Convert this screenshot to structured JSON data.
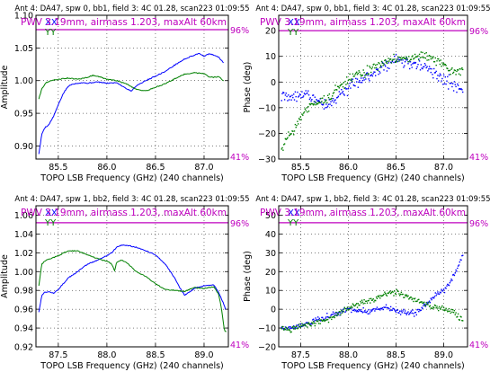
{
  "chart_data": [
    {
      "type": "line",
      "title": "Ant 4: DA47,  spw 0, bb1,  field 3: 4C 01.28,  scan223  01:09:55",
      "xlabel": "TOPO LSB Frequency (GHz) (240 channels)",
      "ylabel": "Amplitude",
      "xlim": [
        85.27,
        87.25
      ],
      "ylim": [
        0.88,
        1.1
      ],
      "xticks": [
        "85.5",
        "86.0",
        "86.5",
        "87.0"
      ],
      "yticks": [
        "0.90",
        "0.95",
        "1.00",
        "1.05",
        "1.10"
      ],
      "grid": true,
      "legend": [
        "XX",
        "YY"
      ],
      "annotation": "PWV 3.19mm, airmass 1.203, maxAlt 60km",
      "atm_labels": [
        "96%",
        "41%"
      ],
      "atm_level": 1.078,
      "series": [
        {
          "name": "XX",
          "color": "#0000ff",
          "style": "line",
          "x": [
            85.3,
            85.33,
            85.36,
            85.4,
            85.45,
            85.5,
            85.55,
            85.6,
            85.65,
            85.7,
            85.75,
            85.8,
            85.9,
            86.0,
            86.1,
            86.2,
            86.25,
            86.3,
            86.4,
            86.5,
            86.6,
            86.7,
            86.8,
            86.9,
            86.95,
            87.0,
            87.05,
            87.1,
            87.15,
            87.2
          ],
          "y": [
            0.888,
            0.918,
            0.928,
            0.932,
            0.945,
            0.963,
            0.98,
            0.991,
            0.995,
            0.996,
            0.997,
            0.996,
            0.998,
            0.996,
            0.997,
            0.988,
            0.984,
            0.992,
            1.0,
            1.007,
            1.014,
            1.024,
            1.033,
            1.039,
            1.042,
            1.037,
            1.041,
            1.039,
            1.036,
            1.027
          ]
        },
        {
          "name": "YY",
          "color": "#008000",
          "style": "line",
          "x": [
            85.3,
            85.33,
            85.37,
            85.4,
            85.5,
            85.6,
            85.7,
            85.8,
            85.85,
            85.9,
            86.0,
            86.1,
            86.2,
            86.3,
            86.4,
            86.5,
            86.6,
            86.7,
            86.8,
            86.9,
            87.0,
            87.05,
            87.1,
            87.15,
            87.2
          ],
          "y": [
            0.972,
            0.988,
            0.996,
            0.999,
            1.002,
            1.004,
            1.002,
            1.005,
            1.008,
            1.007,
            1.002,
            1.0,
            0.995,
            0.987,
            0.984,
            0.99,
            0.995,
            1.003,
            1.01,
            1.012,
            1.011,
            1.006,
            1.005,
            1.006,
            1.0
          ]
        }
      ]
    },
    {
      "type": "scatter",
      "title": "Ant 4: DA47,  spw 0, bb1,  field 3: 4C 01.28,  scan223  01:09:55",
      "xlabel": "TOPO LSB Frequency (GHz) (240 channels)",
      "ylabel": "Phase (deg)",
      "xlim": [
        85.27,
        87.25
      ],
      "ylim": [
        -30,
        26
      ],
      "xticks": [
        "85.5",
        "86.0",
        "86.5",
        "87.0"
      ],
      "yticks": [
        "−30",
        "−20",
        "−10",
        "0",
        "10",
        "20"
      ],
      "grid": true,
      "legend": [
        "XX",
        "YY"
      ],
      "annotation": "PWV 3.19mm, airmass 1.203, maxAlt 60km",
      "atm_labels": [
        "96%",
        "41%"
      ],
      "atm_level": 20,
      "series": [
        {
          "name": "XX",
          "color": "#0000ff",
          "style": "points",
          "x": [
            85.3,
            85.4,
            85.5,
            85.6,
            85.7,
            85.8,
            85.9,
            86.0,
            86.1,
            86.2,
            86.3,
            86.4,
            86.5,
            86.6,
            86.7,
            86.8,
            86.9,
            87.0,
            87.1,
            87.2
          ],
          "y": [
            -5,
            -6,
            -4,
            -6,
            -8,
            -9,
            -5,
            -2,
            0,
            2,
            4,
            6,
            9,
            8,
            7,
            6,
            3,
            1,
            -1,
            -3
          ],
          "spread": 2.2
        },
        {
          "name": "YY",
          "color": "#008000",
          "style": "points",
          "x": [
            85.3,
            85.35,
            85.4,
            85.5,
            85.6,
            85.7,
            85.8,
            85.9,
            86.0,
            86.1,
            86.2,
            86.3,
            86.4,
            86.5,
            86.6,
            86.7,
            86.8,
            86.9,
            87.0,
            87.1,
            87.2
          ],
          "y": [
            -27,
            -22,
            -20,
            -14,
            -9,
            -8,
            -6,
            -2,
            1,
            3,
            4,
            6,
            8,
            9,
            10,
            10,
            10,
            9,
            7,
            4,
            4
          ],
          "spread": 1.8
        }
      ]
    },
    {
      "type": "line",
      "title": "Ant 4: DA47,  spw 1, bb2,  field 3: 4C 01.28,  scan223  01:09:55",
      "xlabel": "TOPO LSB Frequency (GHz) (240 channels)",
      "ylabel": "Amplitude",
      "xlim": [
        87.27,
        89.25
      ],
      "ylim": [
        0.92,
        1.07
      ],
      "xticks": [
        "87.5",
        "88.0",
        "88.5",
        "89.0"
      ],
      "yticks": [
        "0.92",
        "0.94",
        "0.96",
        "0.98",
        "1.00",
        "1.02",
        "1.04",
        "1.06"
      ],
      "grid": true,
      "legend": [
        "XX",
        "YY"
      ],
      "annotation": "PWV 3.19mm, airmass 1.203, maxAlt 60km",
      "atm_labels": [
        "96%",
        "41%"
      ],
      "atm_level": 1.052,
      "series": [
        {
          "name": "XX",
          "color": "#0000ff",
          "style": "line",
          "x": [
            87.3,
            87.33,
            87.36,
            87.4,
            87.45,
            87.5,
            87.55,
            87.6,
            87.7,
            87.8,
            87.9,
            88.0,
            88.05,
            88.1,
            88.15,
            88.2,
            88.3,
            88.4,
            88.5,
            88.6,
            88.7,
            88.75,
            88.8,
            88.85,
            88.9,
            89.0,
            89.1,
            89.15,
            89.2,
            89.22
          ],
          "y": [
            0.957,
            0.975,
            0.978,
            0.979,
            0.977,
            0.981,
            0.987,
            0.993,
            1.0,
            1.008,
            1.012,
            1.017,
            1.02,
            1.026,
            1.028,
            1.028,
            1.026,
            1.022,
            1.018,
            1.008,
            0.993,
            0.983,
            0.975,
            0.978,
            0.982,
            0.985,
            0.986,
            0.978,
            0.966,
            0.96
          ]
        },
        {
          "name": "YY",
          "color": "#008000",
          "style": "line",
          "x": [
            87.3,
            87.33,
            87.36,
            87.4,
            87.5,
            87.6,
            87.7,
            87.8,
            87.9,
            88.0,
            88.05,
            88.08,
            88.1,
            88.15,
            88.2,
            88.3,
            88.4,
            88.5,
            88.6,
            88.7,
            88.8,
            88.9,
            89.0,
            89.1,
            89.15,
            89.18,
            89.21,
            89.23
          ],
          "y": [
            0.985,
            1.008,
            1.011,
            1.013,
            1.017,
            1.022,
            1.022,
            1.018,
            1.014,
            1.011,
            1.008,
            1.001,
            1.01,
            1.012,
            1.01,
            1.0,
            0.995,
            0.987,
            0.981,
            0.98,
            0.979,
            0.983,
            0.982,
            0.984,
            0.976,
            0.96,
            0.937,
            0.936
          ]
        }
      ]
    },
    {
      "type": "scatter",
      "title": "Ant 4: DA47,  spw 1, bb2,  field 3: 4C 01.28,  scan223  01:09:55",
      "xlabel": "TOPO LSB Frequency (GHz) (240 channels)",
      "ylabel": "Phase (deg)",
      "xlim": [
        87.27,
        89.25
      ],
      "ylim": [
        -20,
        55
      ],
      "xticks": [
        "87.5",
        "88.0",
        "88.5",
        "89.0"
      ],
      "yticks": [
        "−20",
        "−10",
        "0",
        "10",
        "20",
        "30",
        "40",
        "50"
      ],
      "grid": true,
      "legend": [
        "XX",
        "YY"
      ],
      "annotation": "PWV 3.19mm, airmass 1.203, maxAlt 60km",
      "atm_labels": [
        "96%",
        "41%"
      ],
      "atm_level": 46,
      "series": [
        {
          "name": "XX",
          "color": "#0000ff",
          "style": "points",
          "x": [
            87.3,
            87.4,
            87.5,
            87.6,
            87.7,
            87.8,
            87.9,
            88.0,
            88.1,
            88.2,
            88.3,
            88.4,
            88.5,
            88.6,
            88.7,
            88.8,
            88.9,
            89.0,
            89.05,
            89.1,
            89.15,
            89.2
          ],
          "y": [
            -10,
            -10,
            -9,
            -7,
            -5,
            -4,
            -2,
            0,
            -1,
            -1,
            0,
            1,
            -1,
            -2,
            -2,
            2,
            7,
            10,
            13,
            17,
            22,
            29
          ],
          "spread": 1.5
        },
        {
          "name": "YY",
          "color": "#008000",
          "style": "points",
          "x": [
            87.3,
            87.4,
            87.5,
            87.6,
            87.7,
            87.8,
            87.9,
            88.0,
            88.1,
            88.2,
            88.3,
            88.4,
            88.5,
            88.6,
            88.7,
            88.8,
            88.9,
            89.0,
            89.1,
            89.15,
            89.2
          ],
          "y": [
            -10,
            -11,
            -9,
            -8,
            -7,
            -5,
            -2,
            1,
            3,
            4,
            6,
            8,
            9,
            7,
            5,
            3,
            1,
            0,
            -1,
            -3,
            -7
          ],
          "spread": 1.4
        }
      ]
    }
  ]
}
